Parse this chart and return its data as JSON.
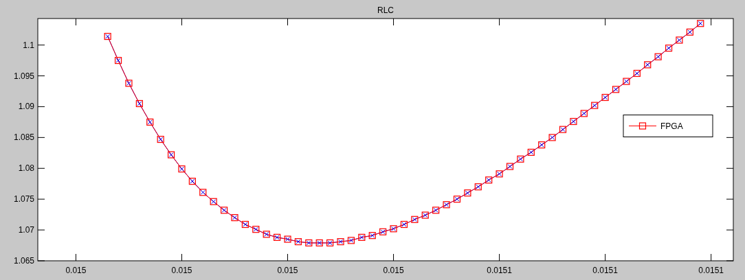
{
  "chart_data": {
    "type": "line",
    "title": "RLC",
    "x": [
      0.015013,
      0.015014,
      0.015015,
      0.015016,
      0.015017,
      0.015018,
      0.015019,
      0.01502,
      0.015021,
      0.015022,
      0.015023,
      0.015024,
      0.015025,
      0.015026,
      0.015027,
      0.015028,
      0.015029,
      0.01503,
      0.015031,
      0.015032,
      0.015033,
      0.015034,
      0.015035,
      0.015036,
      0.015037,
      0.015038,
      0.015039,
      0.01504,
      0.015041,
      0.015042,
      0.015043,
      0.015044,
      0.015045,
      0.015046,
      0.015047,
      0.015048,
      0.015049,
      0.01505,
      0.015051,
      0.015052,
      0.015053,
      0.015054,
      0.015055,
      0.015056,
      0.015057,
      0.015058,
      0.015059,
      0.01506,
      0.015061,
      0.015062,
      0.015063,
      0.015064,
      0.015065,
      0.015066,
      0.015067,
      0.015068,
      0.015069
    ],
    "series": [
      {
        "color": "#0000ff",
        "marker": "cross",
        "values": [
          1.1014,
          1.0975,
          1.0938,
          1.0905,
          1.0875,
          1.0847,
          1.0822,
          1.0799,
          1.0779,
          1.0761,
          1.0746,
          1.0732,
          1.072,
          1.0709,
          1.0701,
          1.0693,
          1.0688,
          1.0685,
          1.0681,
          1.0679,
          1.0679,
          1.0679,
          1.0681,
          1.0683,
          1.0688,
          1.0691,
          1.0697,
          1.0702,
          1.0709,
          1.0717,
          1.0724,
          1.0732,
          1.0741,
          1.075,
          1.076,
          1.077,
          1.0781,
          1.0791,
          1.0803,
          1.0815,
          1.0826,
          1.0838,
          1.085,
          1.0863,
          1.0876,
          1.0889,
          1.0902,
          1.0915,
          1.0928,
          1.0941,
          1.0954,
          1.0968,
          1.0981,
          1.0995,
          1.1008,
          1.1021,
          1.1035
        ]
      },
      {
        "name": "FPGA",
        "color": "#ff0000",
        "marker": "square",
        "values": [
          1.1014,
          1.0975,
          1.0938,
          1.0905,
          1.0875,
          1.0847,
          1.0822,
          1.0799,
          1.0779,
          1.0761,
          1.0746,
          1.0732,
          1.072,
          1.0709,
          1.0701,
          1.0693,
          1.0688,
          1.0685,
          1.0681,
          1.0679,
          1.0679,
          1.0679,
          1.0681,
          1.0683,
          1.0688,
          1.0691,
          1.0697,
          1.0702,
          1.0709,
          1.0717,
          1.0724,
          1.0732,
          1.0741,
          1.075,
          1.076,
          1.077,
          1.0781,
          1.0791,
          1.0803,
          1.0815,
          1.0826,
          1.0838,
          1.085,
          1.0863,
          1.0876,
          1.0889,
          1.0902,
          1.0915,
          1.0928,
          1.0941,
          1.0954,
          1.0968,
          1.0981,
          1.0995,
          1.1008,
          1.1021,
          1.1035
        ]
      }
    ],
    "xlim": [
      0.0150064,
      0.0150721
    ],
    "xticks": [
      {
        "value": 0.01501,
        "label": "0.015"
      },
      {
        "value": 0.01502,
        "label": "0.015"
      },
      {
        "value": 0.01503,
        "label": "0.015"
      },
      {
        "value": 0.01504,
        "label": "0.015"
      },
      {
        "value": 0.01505,
        "label": "0.0151"
      },
      {
        "value": 0.01506,
        "label": "0.0151"
      },
      {
        "value": 0.01507,
        "label": "0.0151"
      }
    ],
    "ylim": [
      1.065,
      1.1043
    ],
    "yticks": [
      1.065,
      1.07,
      1.075,
      1.08,
      1.085,
      1.09,
      1.095,
      1.1
    ],
    "legend": "right",
    "grid": false,
    "line_style": "solid"
  }
}
